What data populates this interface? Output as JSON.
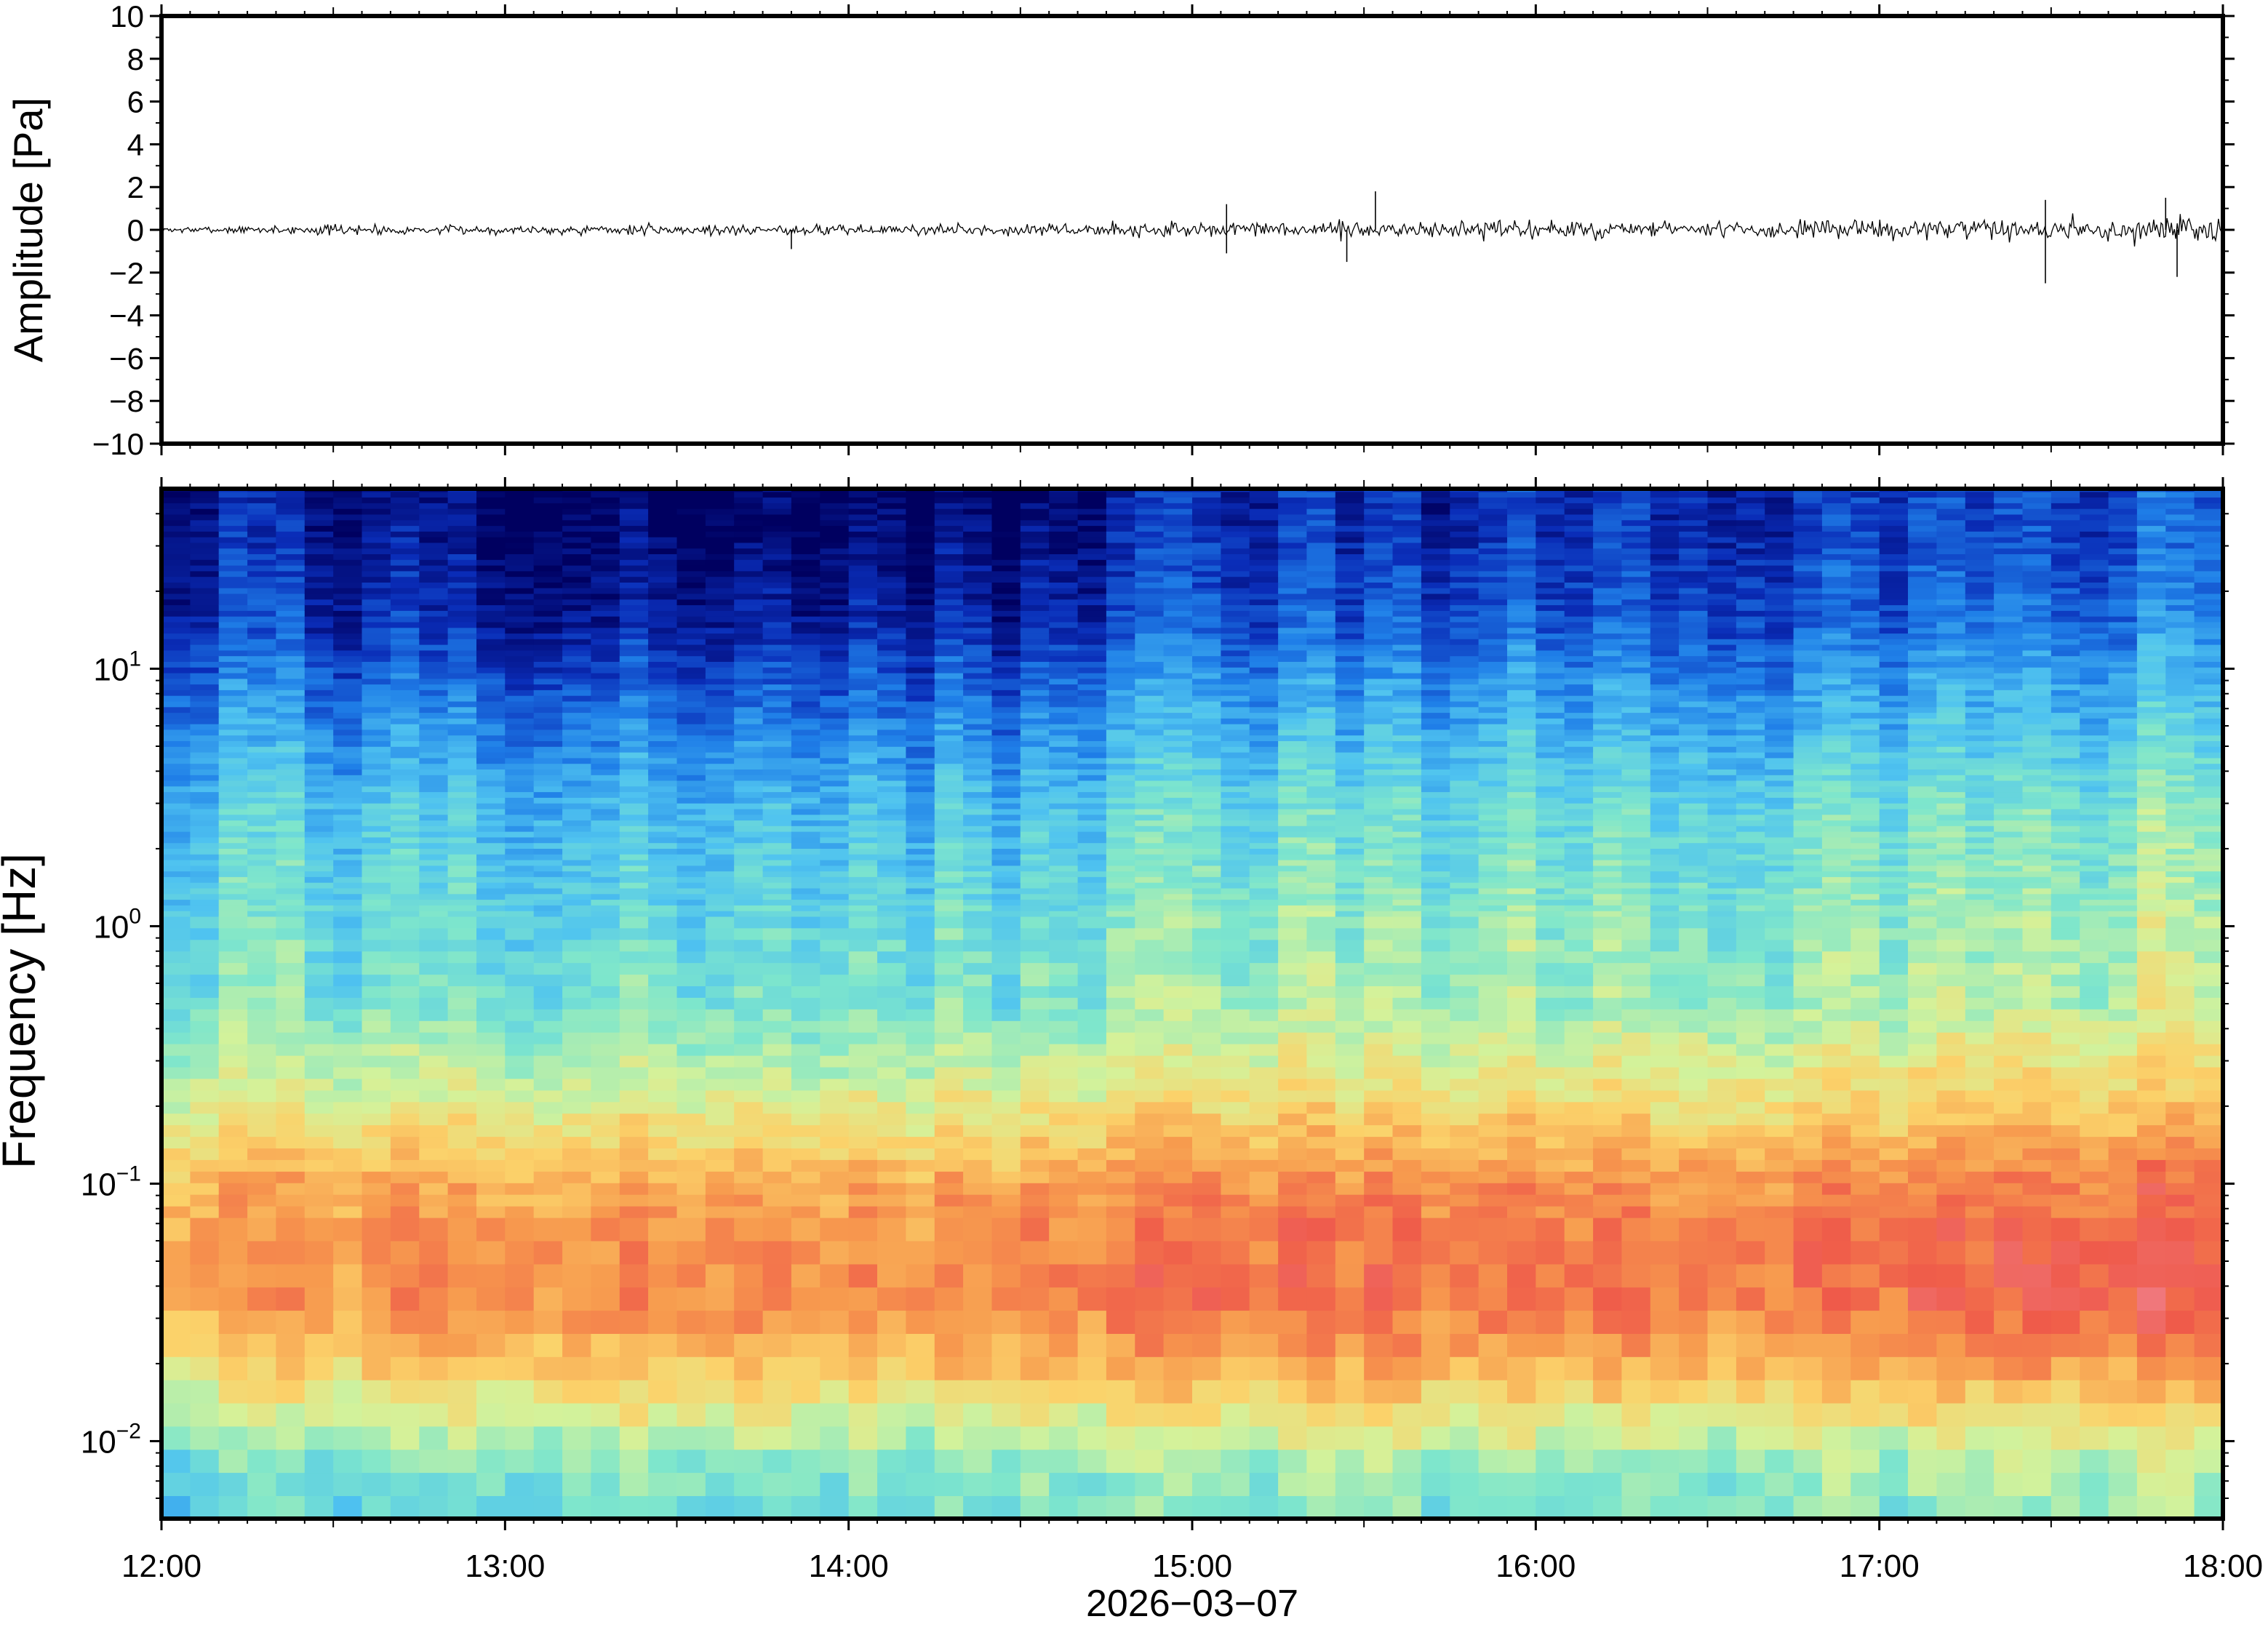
{
  "chart_data": [
    {
      "type": "line",
      "panel": "waveform",
      "ylabel": "Amplitude [Pa]",
      "ylim": [
        -10,
        10
      ],
      "yticks": [
        10,
        8,
        6,
        4,
        2,
        0,
        -2,
        -4,
        -6,
        -8,
        -10
      ],
      "ytick_labels": [
        "10",
        "8",
        "6",
        "4",
        "2",
        "0",
        "−2",
        "−4",
        "−6",
        "−8",
        "−10"
      ],
      "xlim": [
        "12:00",
        "18:00"
      ],
      "line_color": "#000000",
      "envelope": {
        "x": [
          "12:00",
          "12:30",
          "13:00",
          "13:30",
          "14:00",
          "14:30",
          "15:00",
          "15:30",
          "16:00",
          "16:30",
          "17:00",
          "17:30",
          "18:00"
        ],
        "amplitude": [
          0.25,
          0.5,
          0.45,
          0.5,
          0.55,
          0.55,
          0.75,
          0.9,
          0.85,
          0.85,
          0.9,
          1.1,
          1.2
        ]
      },
      "spikes": [
        {
          "x": "13:50",
          "y": -0.9
        },
        {
          "x": "15:06",
          "y": 1.2
        },
        {
          "x": "15:06",
          "y": -1.1
        },
        {
          "x": "15:32",
          "y": 1.8
        },
        {
          "x": "15:27",
          "y": -1.5
        },
        {
          "x": "17:29",
          "y": -2.5
        },
        {
          "x": "17:29",
          "y": 1.4
        },
        {
          "x": "17:50",
          "y": 1.5
        },
        {
          "x": "17:52",
          "y": -2.2
        }
      ]
    },
    {
      "type": "heatmap",
      "panel": "spectrogram",
      "ylabel": "Frequency [Hz]",
      "xlabel": "2026−03−07",
      "yscale": "log",
      "ylim": [
        0.005,
        50
      ],
      "ytick_labels": [
        {
          "base": "10",
          "exp": "1",
          "value": 10
        },
        {
          "base": "10",
          "exp": "0",
          "value": 1
        },
        {
          "base": "10",
          "exp": "−1",
          "value": 0.1
        },
        {
          "base": "10",
          "exp": "−2",
          "value": 0.01
        }
      ],
      "xlim": [
        "12:00",
        "18:00"
      ],
      "xtick_labels": [
        "12:00",
        "13:00",
        "14:00",
        "15:00",
        "16:00",
        "17:00",
        "18:00"
      ],
      "colormap": [
        "#000060",
        "#0a2db8",
        "#1f7fe8",
        "#4fc3f0",
        "#7ee6cc",
        "#d4f29a",
        "#fbd26a",
        "#f79a4e",
        "#ef5a4a",
        "#f08a9a"
      ],
      "intensity_profile": {
        "freq_hz": [
          0.005,
          0.008,
          0.012,
          0.02,
          0.035,
          0.06,
          0.1,
          0.2,
          0.5,
          1,
          3,
          8,
          15,
          30,
          50
        ],
        "level": [
          0.4,
          0.45,
          0.55,
          0.7,
          0.8,
          0.8,
          0.75,
          0.6,
          0.45,
          0.42,
          0.35,
          0.22,
          0.12,
          0.07,
          0.05
        ]
      },
      "time_modulation": {
        "x": [
          "12:00",
          "12:30",
          "13:00",
          "13:30",
          "14:00",
          "14:30",
          "15:00",
          "15:30",
          "16:00",
          "16:30",
          "17:00",
          "17:30",
          "18:00"
        ],
        "high_freq_shift": [
          0.02,
          0.0,
          -0.05,
          -0.06,
          -0.05,
          -0.05,
          0.04,
          0.05,
          0.06,
          0.07,
          0.08,
          0.1,
          0.12
        ],
        "low_freq_shift": [
          -0.05,
          -0.02,
          0.0,
          0.02,
          0.0,
          0.02,
          0.04,
          0.05,
          0.03,
          0.04,
          0.05,
          0.08,
          0.08
        ]
      }
    }
  ]
}
